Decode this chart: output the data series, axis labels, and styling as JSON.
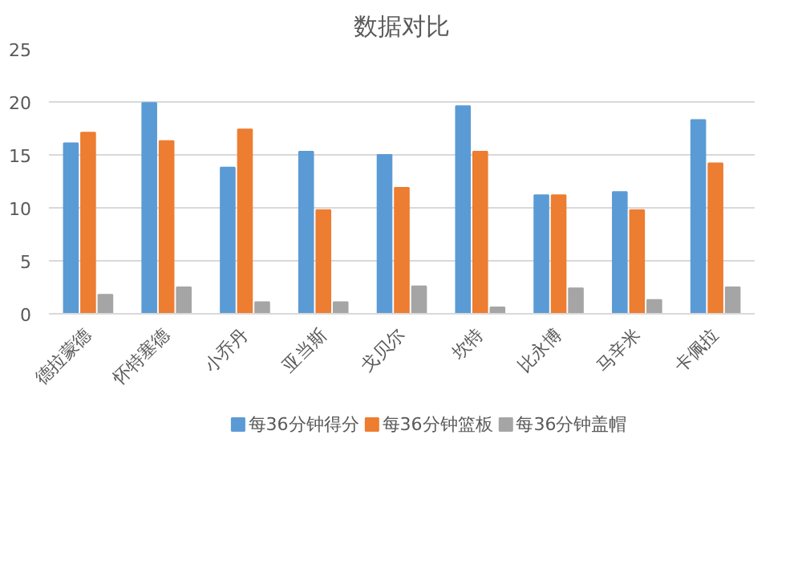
{
  "chart_data": {
    "type": "bar",
    "title": "数据对比",
    "categories": [
      "德拉蒙德",
      "怀特塞德",
      "小乔丹",
      "亚当斯",
      "戈贝尔",
      "坎特",
      "比永博",
      "马辛米",
      "卡佩拉"
    ],
    "series": [
      {
        "name": "每36分钟得分",
        "color": "#5b9bd5",
        "values": [
          16.1,
          19.9,
          13.8,
          15.3,
          15.0,
          19.6,
          11.2,
          11.5,
          18.3
        ]
      },
      {
        "name": "每36分钟篮板",
        "color": "#ed7d31",
        "values": [
          17.1,
          16.3,
          17.4,
          9.8,
          11.9,
          15.3,
          11.2,
          9.8,
          14.2
        ]
      },
      {
        "name": "每36分钟盖帽",
        "color": "#a5a5a5",
        "values": [
          1.8,
          2.5,
          1.1,
          1.1,
          2.6,
          0.6,
          2.4,
          1.3,
          2.5
        ]
      }
    ],
    "ylim": [
      0,
      25
    ],
    "yticks": [
      0,
      5,
      10,
      15,
      20,
      25
    ],
    "grid": "y",
    "legend": "bottom"
  }
}
